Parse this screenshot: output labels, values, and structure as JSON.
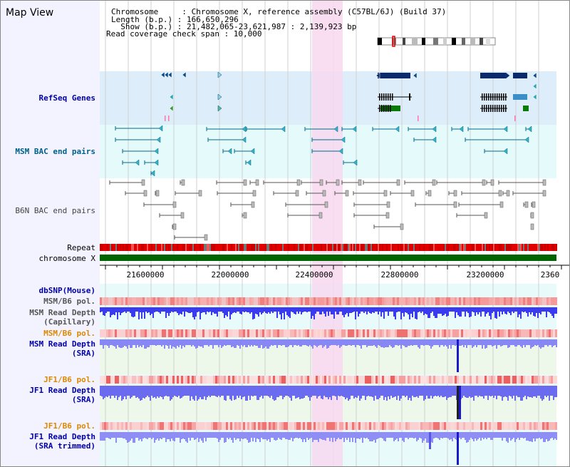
{
  "page": {
    "title": "Map View"
  },
  "info": {
    "chromosome": "Chromosome     : Chromosome X, reference assembly (C57BL/6J) (Build 37)",
    "length": "Length (b.p.) : 166,650,296",
    "show": "  Show (b.p.) : 21,482,065-23,621,987 : 2,139,923 bp",
    "coverage": "Read coverage check span : 10,000"
  },
  "tracks": {
    "refseq": "RefSeq Genes",
    "msm_bac": "MSM BAC end pairs",
    "b6n_bac": "B6N BAC end pairs",
    "repeat": "Repeat",
    "chromosome": "chromosome X",
    "dbsnp": "dbSNP(Mouse)",
    "msm_pol": "MSM/B6 pol.",
    "msm_depth_cap_1": "MSM Read Depth",
    "msm_depth_cap_2": "(Capillary)",
    "msm_pol2": "MSM/B6 pol.",
    "msm_depth_sra_1": "MSM Read Depth",
    "msm_depth_sra_2": "(SRA)",
    "jf1_pol": "JF1/B6 pol.",
    "jf1_depth_sra_1": "JF1 Read Depth",
    "jf1_depth_sra_2": "(SRA)",
    "jf1_pol2": "JF1/B6 pol.",
    "jf1_depth_trim_1": "JF1 Read Depth",
    "jf1_depth_trim_2": "(SRA trimmed)"
  },
  "axis": {
    "ticks": [
      "21600000",
      "22000000",
      "22400000",
      "22800000",
      "23200000",
      "2360"
    ]
  },
  "colors": {
    "refseq_bg": "#ddeefa",
    "msm_bac_bg": "#e5fafa",
    "highlight": "#f8d8f0",
    "refseq_label": "#0000aa",
    "msm_label": "#005f87",
    "b6n_label": "#444444",
    "orange_label": "#dd8800",
    "blue_label": "#0000aa",
    "depth_blue": "#3a3aee",
    "depth_light": "#8888f4",
    "chromosome_green": "#006400",
    "repeat_red": "#e00000"
  }
}
